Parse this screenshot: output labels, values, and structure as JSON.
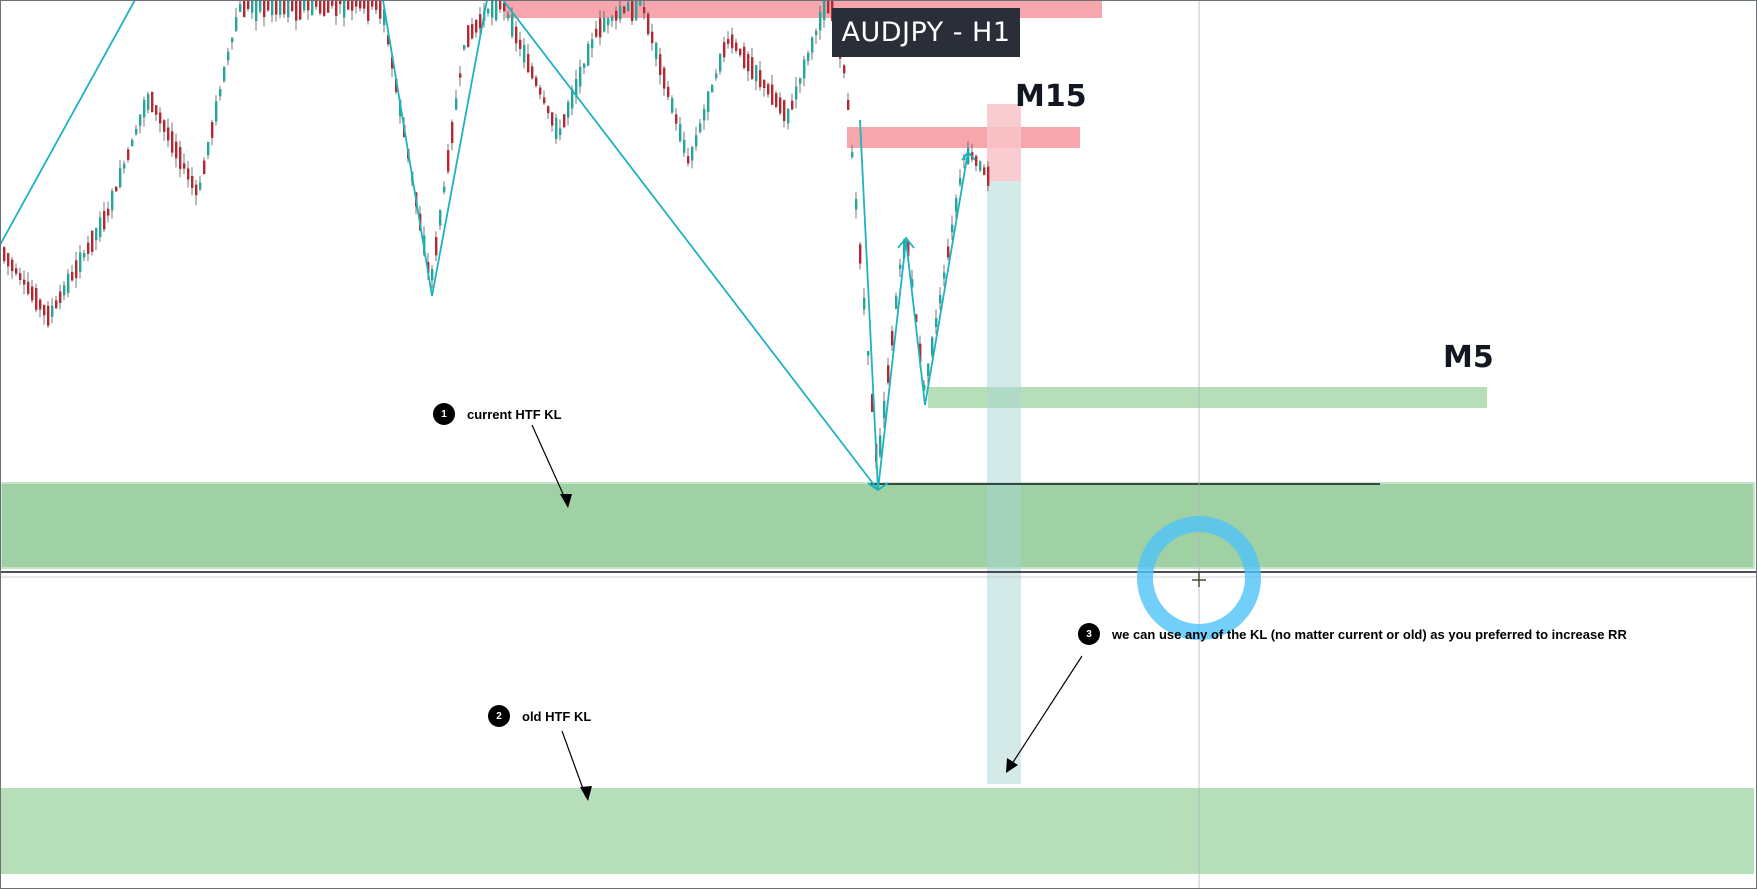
{
  "chart_data": {
    "type": "candlestick",
    "title": "AUDJPY - H1",
    "timeframe_labels": [
      "M15",
      "M5"
    ],
    "zones": [
      {
        "name": "current HTF KL",
        "kind": "demand"
      },
      {
        "name": "old HTF KL",
        "kind": "demand"
      },
      {
        "name": "M5",
        "kind": "demand"
      },
      {
        "name": "M15",
        "kind": "supply"
      }
    ],
    "annotations": [
      {
        "number": "1",
        "text": "current HTF KL"
      },
      {
        "number": "2",
        "text": "old HTF KL"
      },
      {
        "number": "3",
        "text": "we can use any of the KL (no matter current or old) as you preferred to increase RR"
      }
    ],
    "colors": {
      "up_candle": "#26a69a",
      "down_candle": "#b22833",
      "demand_zone": "#9fd1a4",
      "old_zone": "#b6deb9",
      "supply_zone": "#f7a6ae",
      "zigzag": "#1db3bf",
      "position_stop": "#f8c4c8",
      "position_target": "#cfe8e6",
      "cursor_ring": "#4fc3f7"
    }
  }
}
